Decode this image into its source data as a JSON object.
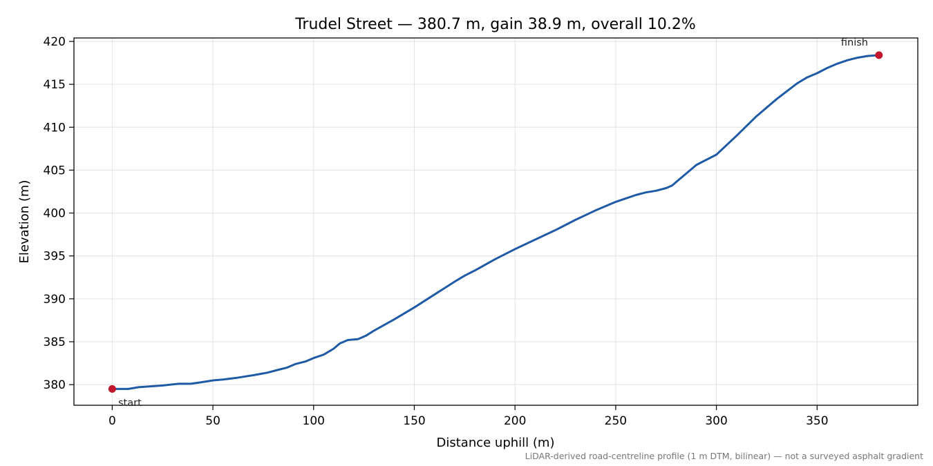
{
  "chart_data": {
    "type": "line",
    "title": "Trudel Street — 380.7 m, gain 38.9 m, overall 10.2%",
    "xlabel": "Distance uphill (m)",
    "ylabel": "Elevation (m)",
    "xlim": [
      -19,
      400
    ],
    "ylim": [
      377.6,
      420.4
    ],
    "xticks": [
      0,
      50,
      100,
      150,
      200,
      250,
      300,
      350
    ],
    "yticks": [
      380,
      385,
      390,
      395,
      400,
      405,
      410,
      415,
      420
    ],
    "grid": true,
    "footnote": "LiDAR-derived road-centreline profile (1 m DTM, bilinear) — not a surveyed asphalt gradient",
    "line_color": "#1f5aa6",
    "marker_color": "#c0182a",
    "series": [
      {
        "x": [
          0,
          8,
          13,
          25,
          33,
          39,
          45,
          50,
          55,
          62,
          70,
          77,
          82,
          87,
          91,
          96,
          100,
          105,
          110,
          113,
          117,
          122,
          126,
          130,
          140,
          150,
          160,
          170,
          175,
          180,
          190,
          200,
          210,
          220,
          225,
          230,
          240,
          250,
          255,
          260,
          265,
          270,
          275,
          278,
          281,
          285,
          290,
          300,
          310,
          320,
          330,
          340,
          345,
          350,
          355,
          360,
          365,
          370,
          375,
          380.7
        ],
        "y": [
          379.5,
          379.5,
          379.7,
          379.9,
          380.1,
          380.1,
          380.3,
          380.5,
          380.6,
          380.8,
          381.1,
          381.4,
          381.7,
          382.0,
          382.4,
          382.7,
          383.1,
          383.5,
          384.2,
          384.8,
          385.2,
          385.3,
          385.7,
          386.3,
          387.6,
          389.0,
          390.5,
          392.0,
          392.7,
          393.3,
          394.6,
          395.8,
          396.9,
          398.0,
          398.6,
          399.2,
          400.3,
          401.3,
          401.7,
          402.1,
          402.4,
          402.6,
          402.9,
          403.2,
          403.8,
          404.6,
          405.6,
          406.8,
          409.0,
          411.3,
          413.3,
          415.1,
          415.8,
          416.3,
          416.9,
          417.4,
          417.8,
          418.1,
          418.3,
          418.4
        ]
      }
    ],
    "annotations": [
      {
        "label": "start",
        "x": 0,
        "y": 379.5
      },
      {
        "label": "finish",
        "x": 380.7,
        "y": 418.4
      }
    ]
  }
}
